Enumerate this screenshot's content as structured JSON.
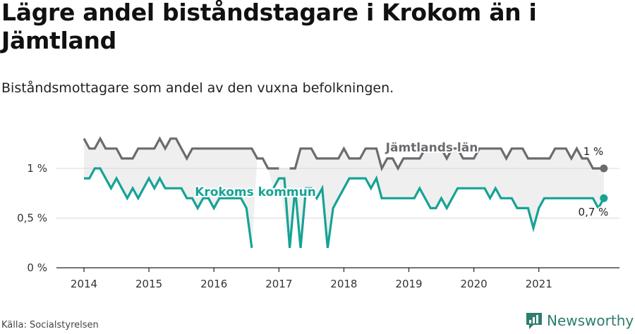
{
  "title": "Lägre andel biståndstagare i Krokom än i Jämtland",
  "subtitle": "Biståndsmottagare som andel av den vuxna befolkningen.",
  "source": "Källa: Socialstyrelsen",
  "brand": "Newsworthy",
  "colors": {
    "jamtland": "#6b6a6e",
    "krokom": "#15a396",
    "band": "#efefef",
    "brand": "#2e7d6e"
  },
  "chart_data": {
    "type": "line",
    "x_start": "2014-01",
    "x_tick_labels": [
      "2014",
      "2015",
      "2016",
      "2017",
      "2018",
      "2019",
      "2020",
      "2021"
    ],
    "y_tick_labels": [
      "0 %",
      "0,5 %",
      "1 %"
    ],
    "y_ticks": [
      0,
      0.5,
      1
    ],
    "ylim": [
      0,
      1.35
    ],
    "xlim": [
      "2013-07",
      "2022-07"
    ],
    "grid": true,
    "series": [
      {
        "name": "Jämtlands län",
        "end_label": "1 %",
        "values": [
          1.3,
          1.2,
          1.2,
          1.3,
          1.2,
          1.2,
          1.2,
          1.1,
          1.1,
          1.1,
          1.2,
          1.2,
          1.2,
          1.2,
          1.3,
          1.2,
          1.3,
          1.3,
          1.2,
          1.1,
          1.2,
          1.2,
          1.2,
          1.2,
          1.2,
          1.2,
          1.2,
          1.2,
          1.2,
          1.2,
          1.2,
          1.2,
          1.1,
          1.1,
          1.0,
          1.0,
          1.0,
          null,
          1.0,
          1.0,
          1.2,
          1.2,
          1.2,
          1.1,
          1.1,
          1.1,
          1.1,
          1.1,
          1.2,
          1.1,
          1.1,
          1.1,
          1.2,
          1.2,
          1.2,
          1.0,
          1.1,
          1.1,
          1.0,
          1.1,
          1.1,
          1.1,
          1.1,
          1.2,
          1.2,
          1.2,
          1.2,
          1.1,
          1.2,
          1.2,
          1.1,
          1.1,
          1.1,
          1.2,
          1.2,
          1.2,
          1.2,
          1.2,
          1.1,
          1.2,
          1.2,
          1.2,
          1.1,
          1.1,
          1.1,
          1.1,
          1.1,
          1.2,
          1.2,
          1.2,
          1.1,
          1.2,
          1.1,
          1.1,
          1.0,
          1.0,
          1.0
        ]
      },
      {
        "name": "Krokoms kommun",
        "end_label": "0,7 %",
        "values": [
          0.9,
          0.9,
          1.0,
          1.0,
          0.9,
          0.8,
          0.9,
          0.8,
          0.7,
          0.8,
          0.7,
          0.8,
          0.9,
          0.8,
          0.9,
          0.8,
          0.8,
          0.8,
          0.8,
          0.7,
          0.7,
          0.6,
          0.7,
          0.7,
          0.6,
          0.7,
          0.7,
          0.7,
          0.7,
          0.7,
          0.6,
          0.2,
          null,
          null,
          null,
          0.8,
          0.9,
          0.9,
          0.2,
          0.8,
          0.2,
          0.8,
          0.8,
          0.7,
          0.8,
          0.2,
          0.6,
          0.7,
          0.8,
          0.9,
          0.9,
          0.9,
          0.9,
          0.8,
          0.9,
          0.7,
          0.7,
          0.7,
          0.7,
          0.7,
          0.7,
          0.7,
          0.8,
          0.7,
          0.6,
          0.6,
          0.7,
          0.6,
          0.7,
          0.8,
          0.8,
          0.8,
          0.8,
          0.8,
          0.8,
          0.7,
          0.8,
          0.7,
          0.7,
          0.7,
          0.6,
          0.6,
          0.6,
          0.4,
          0.6,
          0.7,
          0.7,
          0.7,
          0.7,
          0.7,
          0.7,
          0.7,
          0.7,
          0.7,
          0.7,
          0.6,
          0.7
        ]
      }
    ]
  }
}
